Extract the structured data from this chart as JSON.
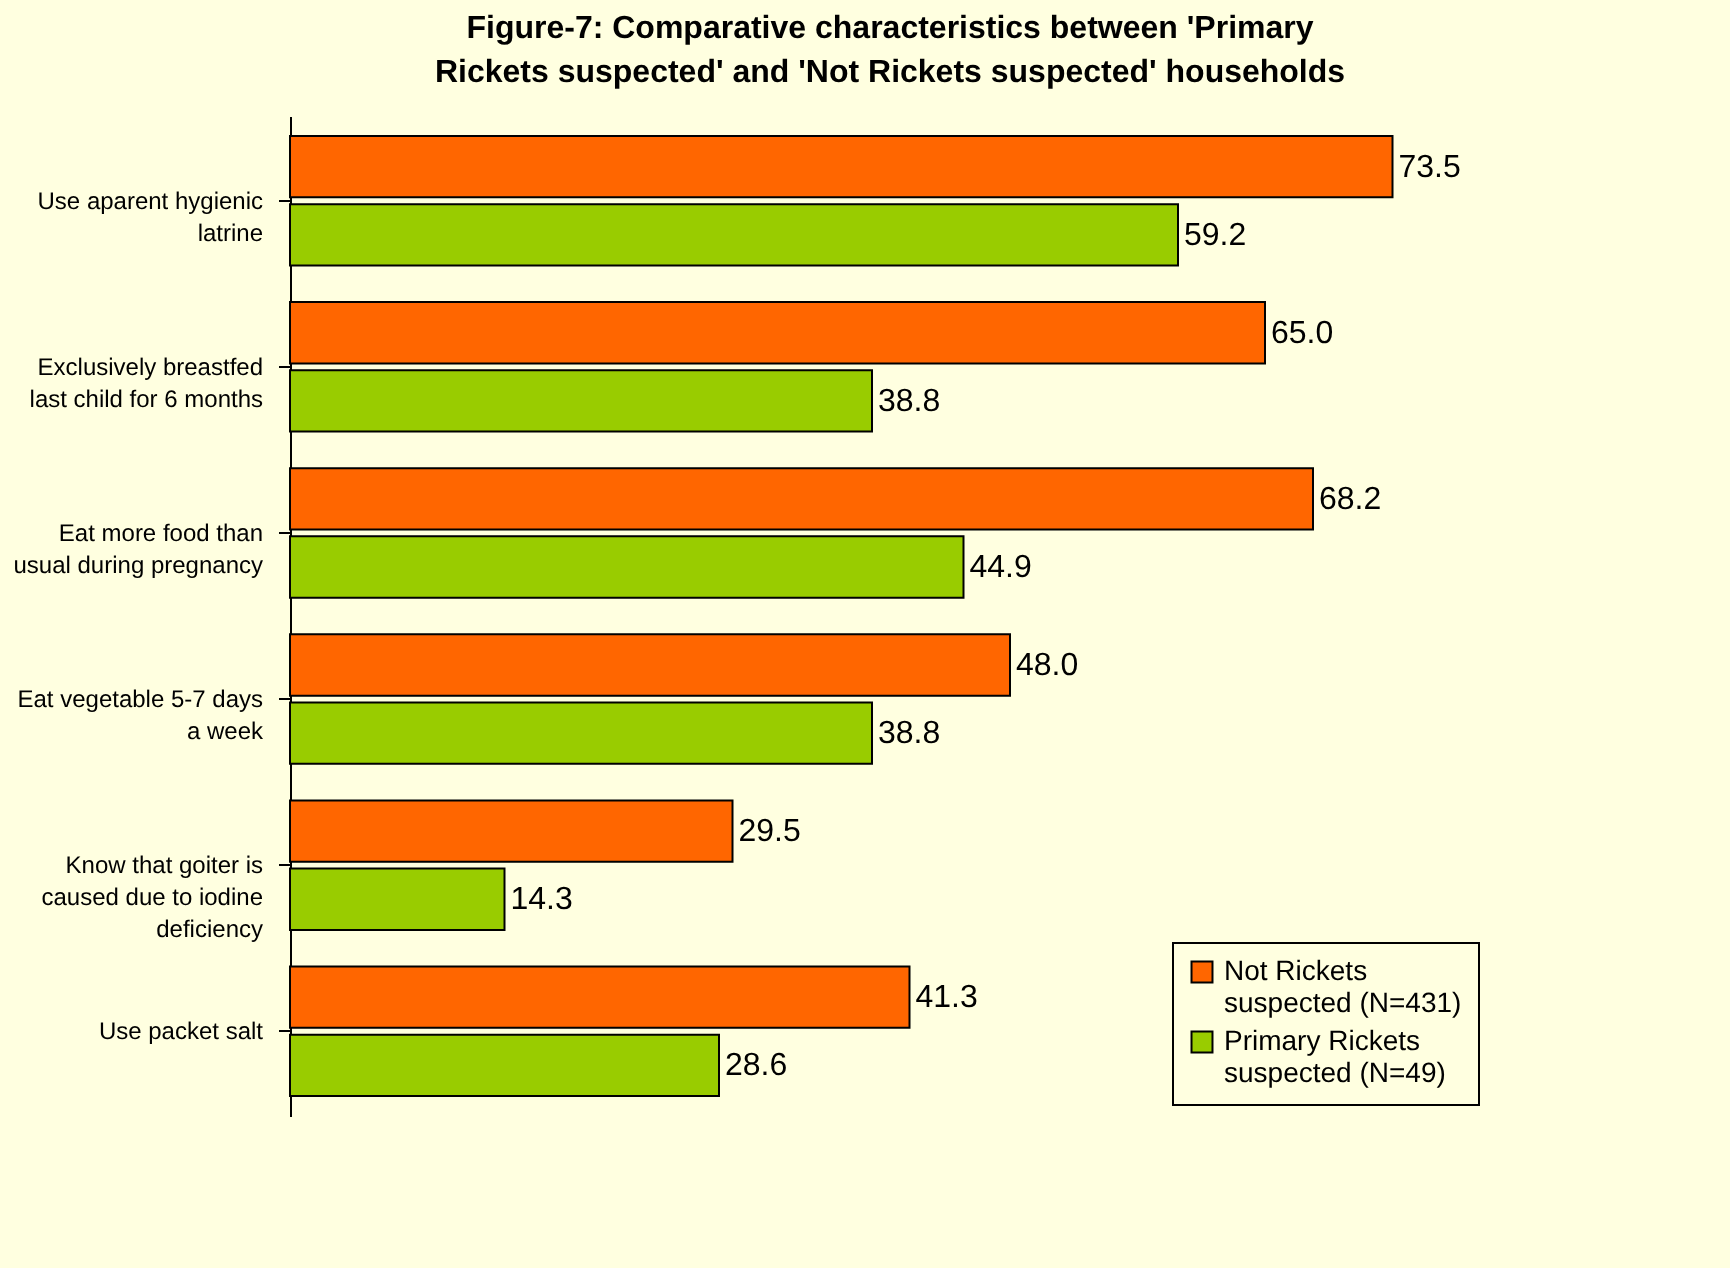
{
  "chart_data": {
    "type": "bar",
    "orientation": "horizontal",
    "title": "Figure-7: Comparative characteristics between 'Primary Rickets suspected' and 'Not Rickets suspected' households",
    "categories": [
      "Use aparent hygienic latrine",
      "Exclusively breastfed last child for 6 months",
      "Eat more food than usual during pregnancy",
      "Eat vegetable 5-7 days a week",
      "Know that goiter is caused due to iodine deficiency",
      "Use packet salt"
    ],
    "series": [
      {
        "name": "Not Rickets suspected (N=431)",
        "color": "#ff6600",
        "values": [
          73.5,
          65.0,
          68.2,
          48.0,
          29.5,
          41.3
        ],
        "value_labels": [
          "73.5",
          "65.0",
          "68.2",
          "48.0",
          "29.5",
          "41.3"
        ]
      },
      {
        "name": "Primary Rickets suspected (N=49)",
        "color": "#99cc00",
        "values": [
          59.2,
          38.8,
          44.9,
          38.8,
          14.3,
          28.6
        ],
        "value_labels": [
          "59.2",
          "38.8",
          "44.9",
          "38.8",
          "14.3",
          "28.6"
        ]
      }
    ],
    "legend": "bottom right"
  }
}
